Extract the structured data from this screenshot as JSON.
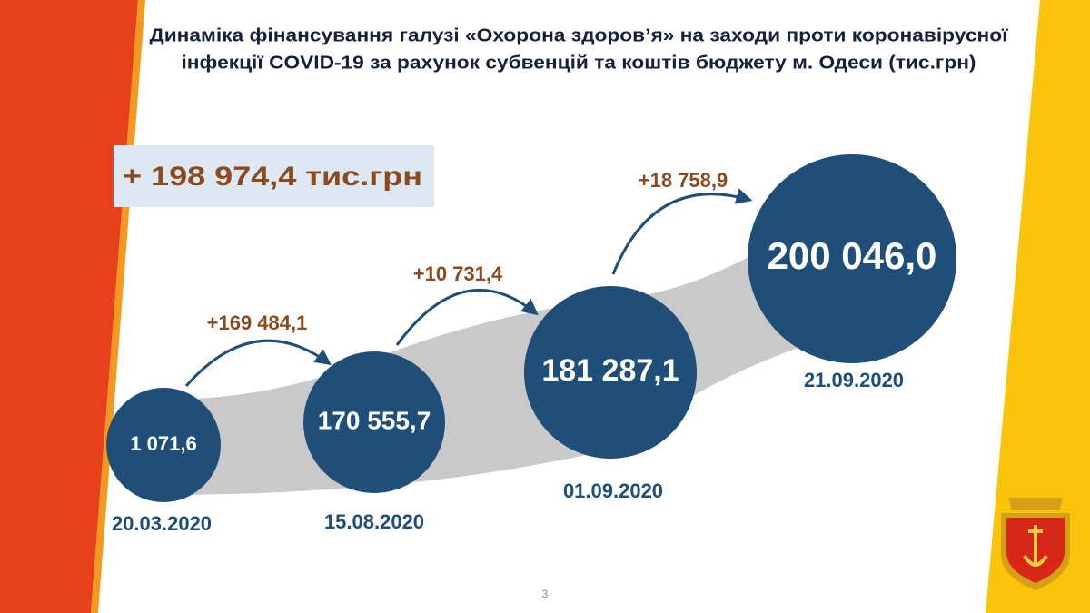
{
  "title": {
    "lines": [
      "Динаміка фінансування галузі «Охорона здоров’я» на заходи проти коронавірусної",
      "інфекції COVID-19 за рахунок субвенцій та коштів бюджету м. Одеси  (тис.грн)"
    ]
  },
  "total": "+ 198 974,4 тис.грн",
  "nodes": [
    {
      "value": "1 071,6",
      "date": "20.03.2020"
    },
    {
      "value": "170 555,7",
      "date": "15.08.2020"
    },
    {
      "value": "181 287,1",
      "date": "01.09.2020"
    },
    {
      "value": "200 046,0",
      "date": "21.09.2020"
    }
  ],
  "increments": [
    "+169 484,1",
    "+10 731,4",
    "+18 758,9"
  ],
  "page_number": "3"
}
